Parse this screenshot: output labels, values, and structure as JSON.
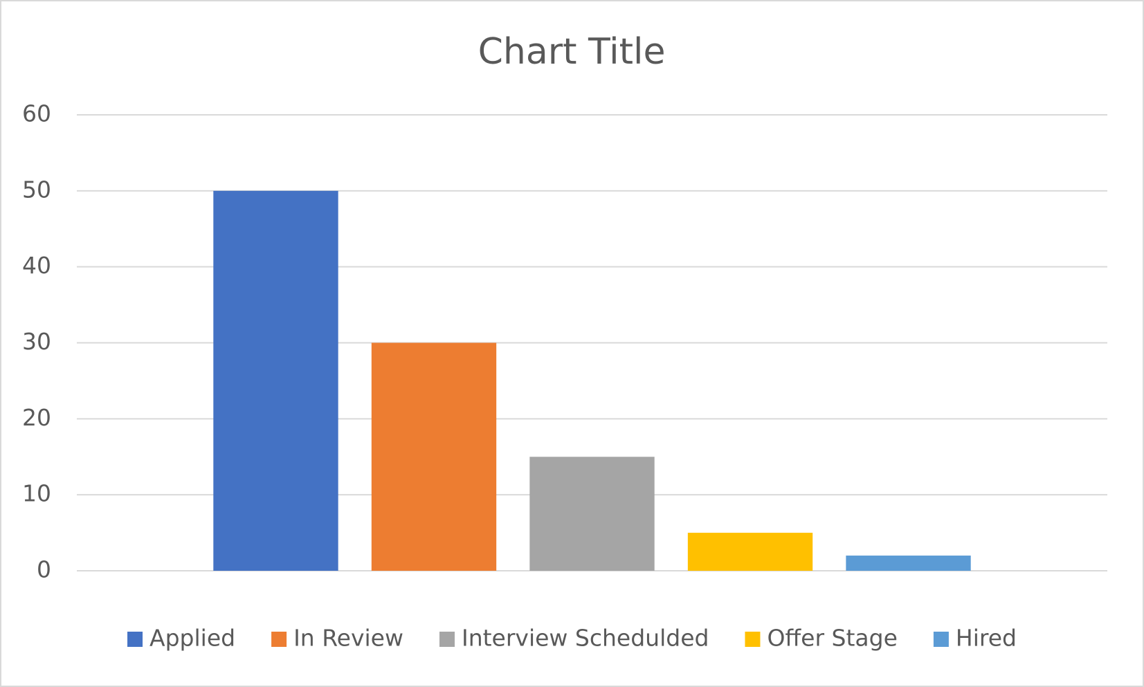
{
  "chart_data": {
    "type": "bar",
    "title": "Chart Title",
    "categories": [
      null
    ],
    "series": [
      {
        "name": "Applied",
        "color": "#4472c4",
        "values": [
          50
        ]
      },
      {
        "name": "In Review",
        "color": "#ed7d31",
        "values": [
          30
        ]
      },
      {
        "name": "Interview Schedulded",
        "color": "#a5a5a5",
        "values": [
          15
        ]
      },
      {
        "name": "Offer Stage",
        "color": "#ffc000",
        "values": [
          5
        ]
      },
      {
        "name": "Hired",
        "color": "#5b9bd5",
        "values": [
          2
        ]
      }
    ],
    "ylim": [
      0,
      60
    ],
    "yticks": [
      0,
      10,
      20,
      30,
      40,
      50,
      60
    ],
    "grid": true,
    "legend": "bottom"
  }
}
